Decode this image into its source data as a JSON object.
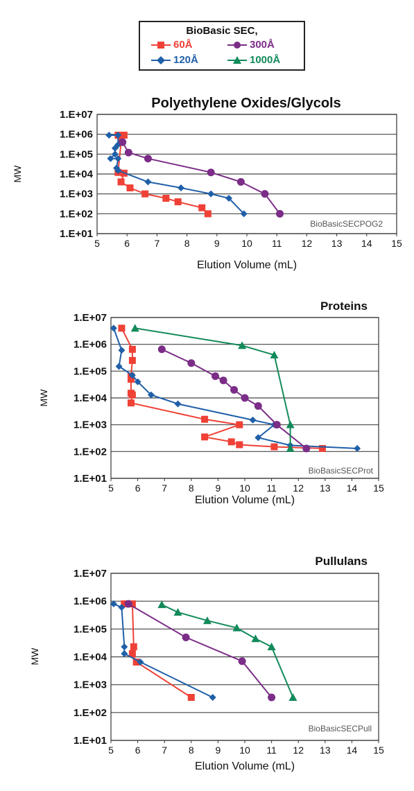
{
  "legend": {
    "title": "BioBasic SEC,",
    "items": [
      {
        "label": "60Å",
        "color": "#ef4136",
        "marker": "square"
      },
      {
        "label": "300Å",
        "color": "#7b2d87",
        "marker": "circle"
      },
      {
        "label": "120Å",
        "color": "#1f5fa8",
        "marker": "diamond"
      },
      {
        "label": "1000Å",
        "color": "#128a5a",
        "marker": "triangle"
      }
    ]
  },
  "chart_data": [
    {
      "type": "line",
      "title": "Polyethylene Oxides/Glycols",
      "xlabel": "Elution Volume (mL)",
      "ylabel": "MW",
      "watermark": "BioBasicSECPOG2",
      "xlim": [
        5,
        15
      ],
      "ylim": [
        10,
        10000000
      ],
      "yscale": "log",
      "xticks": [
        "5",
        "6",
        "7",
        "8",
        "9",
        "10",
        "11",
        "12",
        "13",
        "14",
        "15"
      ],
      "yticks": [
        "1.E+01",
        "1.E+02",
        "1.E+03",
        "1.E+04",
        "1.E+05",
        "1.E+06",
        "1.E+07"
      ],
      "grid": "horizontal",
      "series": [
        {
          "name": "60Å",
          "color": "#ef4136",
          "marker": "square",
          "points": [
            [
              5.9,
              900000
            ],
            [
              5.7,
              900000
            ],
            [
              5.8,
              400000
            ],
            [
              5.7,
              12000
            ],
            [
              5.9,
              11000
            ],
            [
              5.8,
              4000
            ],
            [
              6.1,
              2000
            ],
            [
              6.6,
              1000
            ],
            [
              7.3,
              600
            ],
            [
              7.7,
              400
            ],
            [
              8.5,
              200
            ],
            [
              8.7,
              100
            ]
          ]
        },
        {
          "name": "120Å",
          "color": "#1f5fa8",
          "marker": "diamond",
          "points": [
            [
              5.4,
              900000
            ],
            [
              5.7,
              900000
            ],
            [
              5.7,
              300000
            ],
            [
              5.6,
              200000
            ],
            [
              5.6,
              100000
            ],
            [
              5.45,
              60000
            ],
            [
              5.7,
              60000
            ],
            [
              5.65,
              20000
            ],
            [
              5.7,
              15000
            ],
            [
              6.7,
              4000
            ],
            [
              7.8,
              2000
            ],
            [
              8.8,
              1000
            ],
            [
              9.4,
              600
            ],
            [
              9.9,
              100
            ]
          ]
        },
        {
          "name": "300Å",
          "color": "#7b2d87",
          "marker": "circle",
          "points": [
            [
              5.85,
              400000
            ],
            [
              6.05,
              120000
            ],
            [
              6.7,
              60000
            ],
            [
              8.8,
              12000
            ],
            [
              9.8,
              4000
            ],
            [
              10.6,
              1000
            ],
            [
              11.1,
              100
            ]
          ]
        }
      ]
    },
    {
      "type": "line",
      "title": "Proteins",
      "xlabel": "Elution Volume (mL)",
      "ylabel": "MW",
      "watermark": "BioBasicSECProt",
      "xlim": [
        5,
        15
      ],
      "ylim": [
        10,
        10000000
      ],
      "yscale": "log",
      "xticks": [
        "5",
        "6",
        "7",
        "8",
        "9",
        "10",
        "11",
        "12",
        "13",
        "14",
        "15"
      ],
      "yticks": [
        "1.E+01",
        "1.E+02",
        "1.E+03",
        "1.E+04",
        "1.E+05",
        "1.E+06",
        "1.E+07"
      ],
      "grid": "horizontal",
      "series": [
        {
          "name": "60Å",
          "color": "#ef4136",
          "marker": "square",
          "points": [
            [
              5.4,
              4000000
            ],
            [
              5.8,
              650000
            ],
            [
              5.8,
              250000
            ],
            [
              5.75,
              65000
            ],
            [
              5.75,
              50000
            ],
            [
              5.75,
              15000
            ],
            [
              5.8,
              13000
            ],
            [
              5.75,
              6500
            ],
            [
              8.5,
              1600
            ],
            [
              9.8,
              1000
            ],
            [
              8.5,
              350
            ],
            [
              9.5,
              230
            ],
            [
              9.8,
              180
            ],
            [
              11.1,
              150
            ],
            [
              12.9,
              130
            ]
          ]
        },
        {
          "name": "120Å",
          "color": "#1f5fa8",
          "marker": "diamond",
          "points": [
            [
              5.1,
              4000000
            ],
            [
              5.4,
              600000
            ],
            [
              5.3,
              150000
            ],
            [
              5.8,
              70000
            ],
            [
              6.0,
              40000
            ],
            [
              6.5,
              13000
            ],
            [
              7.5,
              6000
            ],
            [
              10.3,
              1500
            ],
            [
              11.1,
              1000
            ],
            [
              10.5,
              330
            ],
            [
              11.7,
              170
            ],
            [
              14.2,
              130
            ]
          ]
        },
        {
          "name": "300Å",
          "color": "#7b2d87",
          "marker": "circle",
          "points": [
            [
              6.9,
              650000
            ],
            [
              8.0,
              200000
            ],
            [
              8.9,
              65000
            ],
            [
              9.2,
              45000
            ],
            [
              9.6,
              20000
            ],
            [
              10.0,
              10000
            ],
            [
              10.5,
              5000
            ],
            [
              11.2,
              1000
            ],
            [
              12.3,
              130
            ]
          ]
        },
        {
          "name": "1000Å",
          "color": "#128a5a",
          "marker": "triangle",
          "points": [
            [
              5.9,
              4000000
            ],
            [
              9.9,
              900000
            ],
            [
              11.1,
              400000
            ],
            [
              11.7,
              1000
            ],
            [
              11.7,
              130
            ]
          ]
        }
      ]
    },
    {
      "type": "line",
      "title": "Pullulans",
      "xlabel": "Elution Volume (mL)",
      "ylabel": "MW",
      "watermark": "BioBasicSECPull",
      "xlim": [
        5,
        15
      ],
      "ylim": [
        10,
        10000000
      ],
      "yscale": "log",
      "xticks": [
        "5",
        "6",
        "7",
        "8",
        "9",
        "10",
        "11",
        "12",
        "13",
        "14",
        "15"
      ],
      "yticks": [
        "1.E+01",
        "1.E+02",
        "1.E+03",
        "1.E+04",
        "1.E+05",
        "1.E+06",
        "1.E+07"
      ],
      "grid": "horizontal",
      "series": [
        {
          "name": "60Å",
          "color": "#ef4136",
          "marker": "square",
          "points": [
            [
              5.5,
              800000
            ],
            [
              5.8,
              800000
            ],
            [
              5.85,
              23000
            ],
            [
              5.8,
              13000
            ],
            [
              5.95,
              6500
            ],
            [
              8.0,
              350
            ]
          ]
        },
        {
          "name": "120Å",
          "color": "#1f5fa8",
          "marker": "diamond",
          "points": [
            [
              5.1,
              800000
            ],
            [
              5.4,
              600000
            ],
            [
              5.5,
              23000
            ],
            [
              5.5,
              13000
            ],
            [
              6.1,
              6500
            ],
            [
              8.8,
              350
            ]
          ]
        },
        {
          "name": "300Å",
          "color": "#7b2d87",
          "marker": "circle",
          "points": [
            [
              5.65,
              800000
            ],
            [
              7.8,
              50000
            ],
            [
              9.9,
              7000
            ],
            [
              11.0,
              350
            ]
          ]
        },
        {
          "name": "1000Å",
          "color": "#128a5a",
          "marker": "triangle",
          "points": [
            [
              6.9,
              750000
            ],
            [
              7.5,
              400000
            ],
            [
              8.6,
              200000
            ],
            [
              9.7,
              110000
            ],
            [
              10.4,
              45000
            ],
            [
              11.0,
              23000
            ],
            [
              11.8,
              350
            ]
          ]
        }
      ]
    }
  ]
}
